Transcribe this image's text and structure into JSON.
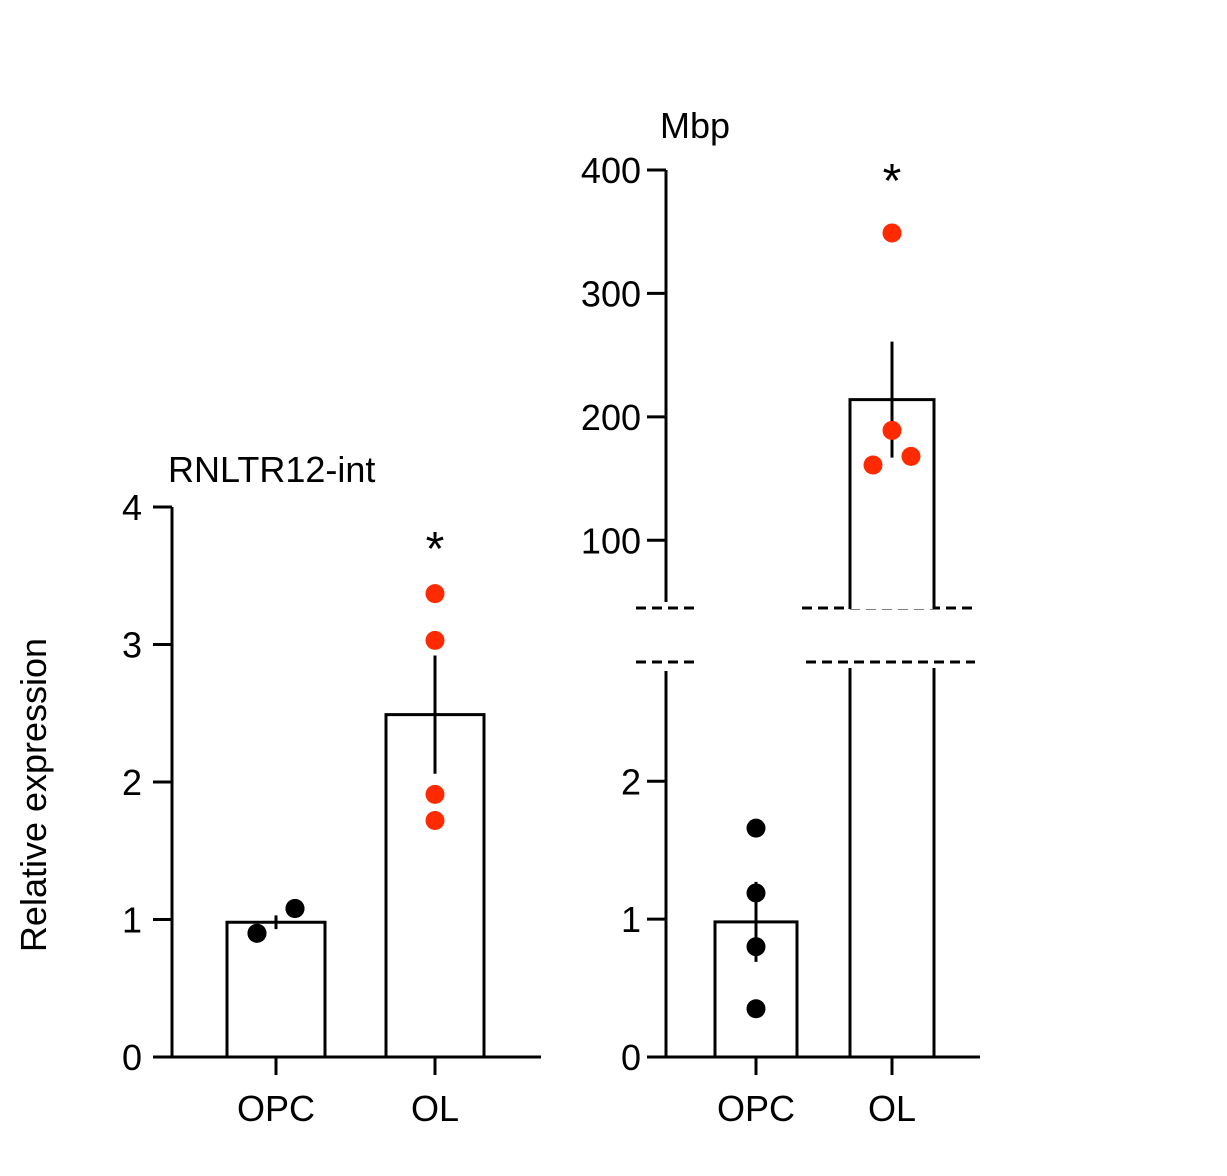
{
  "ylabel": "Relative expression",
  "colors": {
    "group1_points": "#000000",
    "group2_points": "#ff2a00",
    "bars": "#ffffff"
  },
  "chart_data": [
    {
      "type": "bar",
      "title": "RNLTR12-int",
      "ylabel": "Relative expression",
      "categories": [
        "OPC",
        "OL"
      ],
      "values": [
        0.98,
        2.49
      ],
      "error": [
        0.05,
        0.43
      ],
      "points": [
        [
          0.9,
          0.9,
          1.08,
          1.08
        ],
        [
          1.72,
          1.91,
          3.03,
          3.37
        ]
      ],
      "yticks": [
        "0",
        "1",
        "2",
        "3",
        "4"
      ],
      "ylim": [
        0,
        4
      ],
      "significance": [
        "",
        "*"
      ]
    },
    {
      "type": "bar",
      "title": "Mbp",
      "categories": [
        "OPC",
        "OL"
      ],
      "values": [
        0.98,
        214
      ],
      "error": [
        0.29,
        47
      ],
      "points": [
        [
          0.35,
          0.8,
          1.19,
          1.66
        ],
        [
          161,
          168,
          189,
          349
        ]
      ],
      "yticks_lower": [
        "0",
        "1",
        "2"
      ],
      "yticks_upper": [
        "100",
        "200",
        "300",
        "400"
      ],
      "ylim_lower": [
        0,
        2.8
      ],
      "ylim_upper": [
        50,
        400
      ],
      "axis_break": true,
      "significance": [
        "",
        "*"
      ]
    }
  ]
}
